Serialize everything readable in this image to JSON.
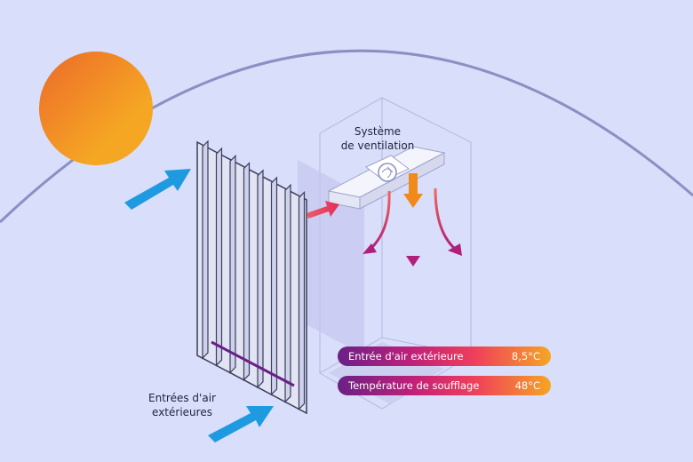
{
  "labels": {
    "ventilation_line1": "Système",
    "ventilation_line2": "de ventilation",
    "inlets_line1": "Entrées d'air",
    "inlets_line2": "extérieures"
  },
  "readouts": [
    {
      "label": "Entrée d'air extérieure",
      "value": "8,5°C"
    },
    {
      "label": "Température de soufflage",
      "value": "48°C"
    }
  ],
  "colors": {
    "background": "#d9defa",
    "sun": "#f5a623",
    "airflow_in": "#1e9be0",
    "hot": "#f5a623",
    "warm": "#c0207a",
    "cool": "#6a2086"
  }
}
